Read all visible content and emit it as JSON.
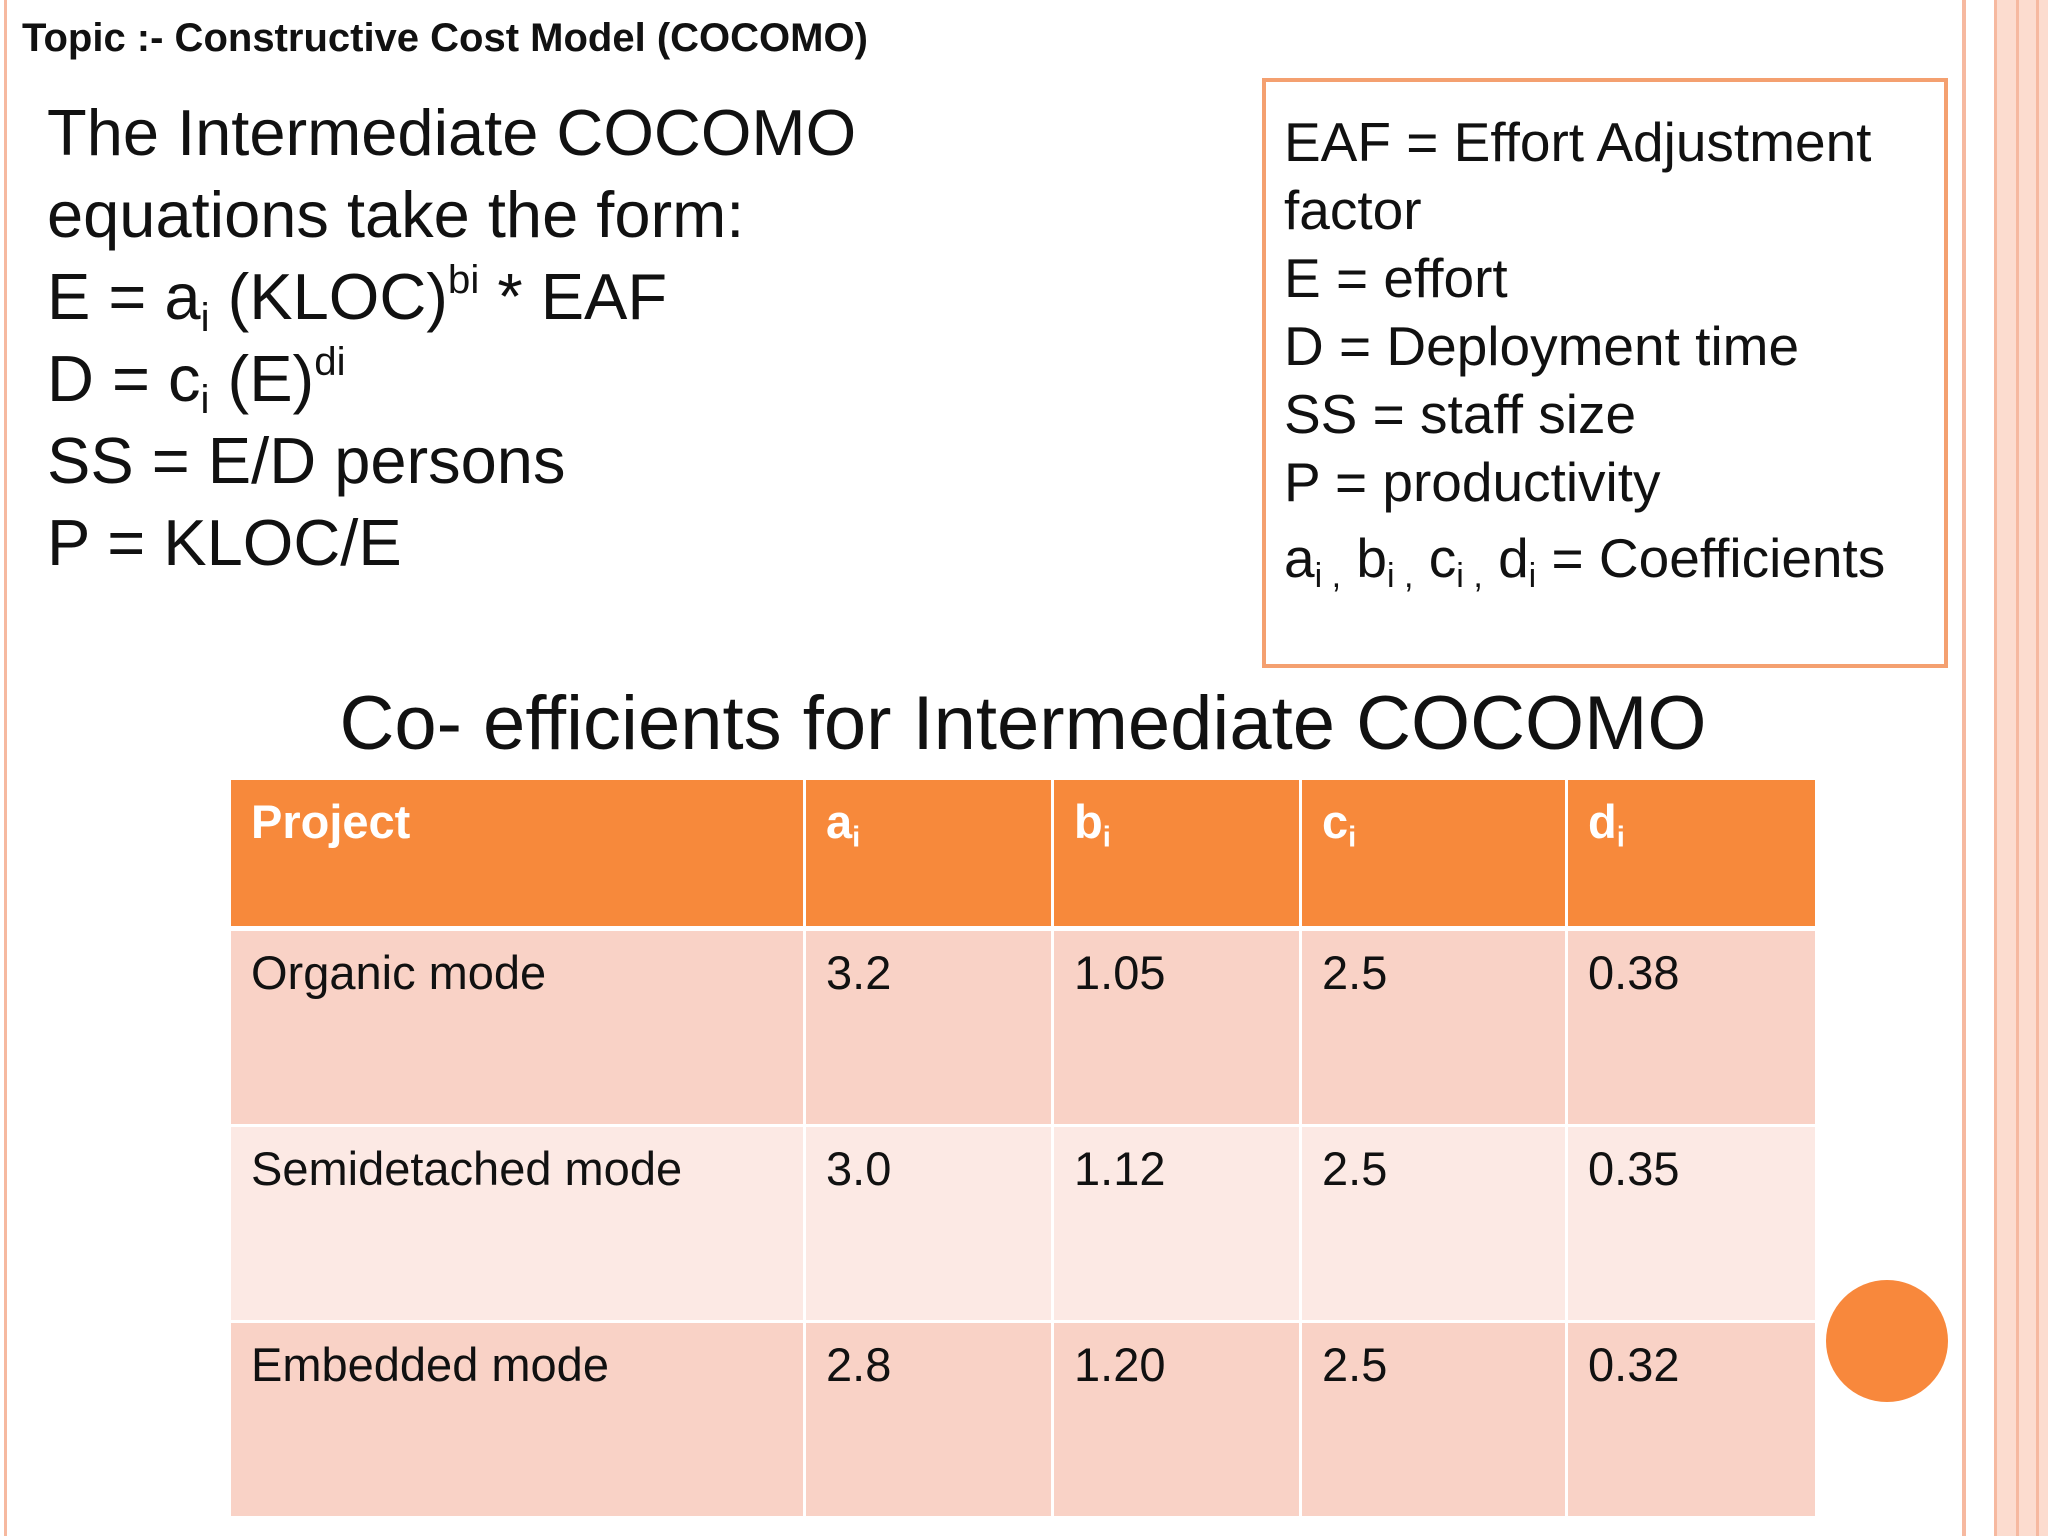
{
  "header": {
    "topic": "Topic :- Constructive Cost Model (COCOMO)"
  },
  "equations": [
    [
      {
        "text": "The Intermediate COCOMO"
      }
    ],
    [
      {
        "text": "equations take the form:"
      }
    ],
    [
      {
        "text": "E = a"
      },
      {
        "sub": "i"
      },
      {
        "text": " (KLOC)"
      },
      {
        "sup": "bi"
      },
      {
        "text": " * EAF"
      }
    ],
    [
      {
        "text": "D = c"
      },
      {
        "sub": "i"
      },
      {
        "text": " (E)"
      },
      {
        "sup": "di"
      }
    ],
    [
      {
        "text": "SS = E/D persons"
      }
    ],
    [
      {
        "text": "P = KLOC/E"
      }
    ]
  ],
  "legend": [
    [
      {
        "text": "EAF = Effort Adjustment"
      }
    ],
    [
      {
        "text": "factor"
      }
    ],
    [
      {
        "text": "E = effort"
      }
    ],
    [
      {
        "text": "D = Deployment time"
      }
    ],
    [
      {
        "text": "SS = staff size"
      }
    ],
    [
      {
        "text": "P = productivity"
      }
    ],
    [
      {
        "text": "a"
      },
      {
        "sub": "i ,"
      },
      {
        "text": " b"
      },
      {
        "sub": "i ,"
      },
      {
        "text": " c"
      },
      {
        "sub": "i ,"
      },
      {
        "text": " d"
      },
      {
        "sub": "i"
      },
      {
        "text": " = Coefficients"
      }
    ]
  ],
  "table": {
    "title": "Co- efficients for Intermediate COCOMO",
    "header": [
      [
        {
          "text": "Project"
        }
      ],
      [
        {
          "text": "a"
        },
        {
          "sub": "i"
        }
      ],
      [
        {
          "text": "b"
        },
        {
          "sub": "i"
        }
      ],
      [
        {
          "text": "c"
        },
        {
          "sub": "i"
        }
      ],
      [
        {
          "text": "d"
        },
        {
          "sub": "i"
        }
      ]
    ],
    "rows": [
      [
        "Organic mode",
        "3.2",
        "1.05",
        "2.5",
        "0.38"
      ],
      [
        "Semidetached mode",
        "3.0",
        "1.12",
        "2.5",
        "0.35"
      ],
      [
        "Embedded mode",
        "2.8",
        "1.20",
        "2.5",
        "0.32"
      ]
    ]
  }
}
